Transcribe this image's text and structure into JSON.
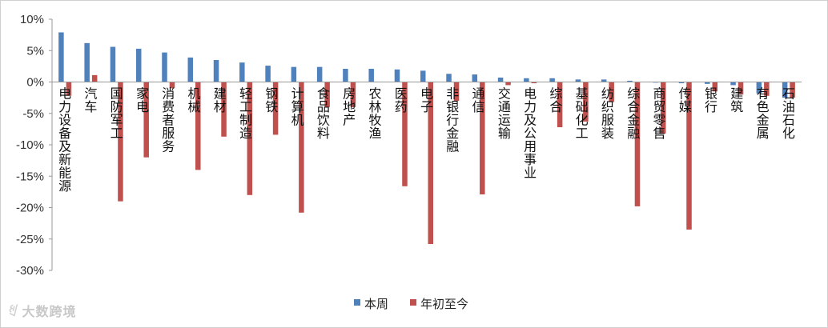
{
  "chart_data": {
    "type": "bar",
    "title": "",
    "xlabel": "",
    "ylabel": "",
    "ylim": [
      -30,
      10
    ],
    "yticks": [
      -30,
      -25,
      -20,
      -15,
      -10,
      -5,
      0,
      5,
      10
    ],
    "ytick_labels": [
      "-30%",
      "-25%",
      "-20%",
      "-15%",
      "-10%",
      "-5%",
      "0%",
      "5%",
      "10%"
    ],
    "grid": false,
    "legend_position": "bottom",
    "categories": [
      "电力设备及新能源",
      "汽车",
      "国防军工",
      "家电",
      "消费者服务",
      "机械",
      "建材",
      "轻工制造",
      "钢铁",
      "计算机",
      "食品饮料",
      "房地产",
      "农林牧渔",
      "医药",
      "电子",
      "非银行金融",
      "通信",
      "交通运输",
      "电力及公用事业",
      "综合",
      "基础化工",
      "纺织服装",
      "综合金融",
      "商贸零售",
      "传媒",
      "银行",
      "建筑",
      "有色金属",
      "石油石化"
    ],
    "series": [
      {
        "name": "本周",
        "color": "#4f81bd",
        "values": [
          7.9,
          6.2,
          5.6,
          5.3,
          4.7,
          3.9,
          3.5,
          3.1,
          2.6,
          2.4,
          2.4,
          2.1,
          2.1,
          2.0,
          1.8,
          1.3,
          1.2,
          0.7,
          0.6,
          0.6,
          0.4,
          0.4,
          0.2,
          -0.1,
          -0.2,
          -0.3,
          -0.5,
          -1.8,
          -2.5
        ]
      },
      {
        "name": "年初至今",
        "color": "#c0504d",
        "values": [
          -2.2,
          1.1,
          -19.0,
          -12.0,
          -1.0,
          -14.0,
          -8.7,
          -18.0,
          -8.4,
          -20.8,
          -4.0,
          -4.0,
          0.0,
          -16.6,
          -25.8,
          -3.0,
          -17.9,
          -0.5,
          -0.2,
          -7.2,
          -6.3,
          -3.2,
          -19.8,
          -8.2,
          -23.5,
          -1.5,
          -2.0,
          -2.2,
          -2.5
        ]
      }
    ]
  },
  "watermark": {
    "logo": "ꐏ",
    "text": "大数跨境"
  }
}
